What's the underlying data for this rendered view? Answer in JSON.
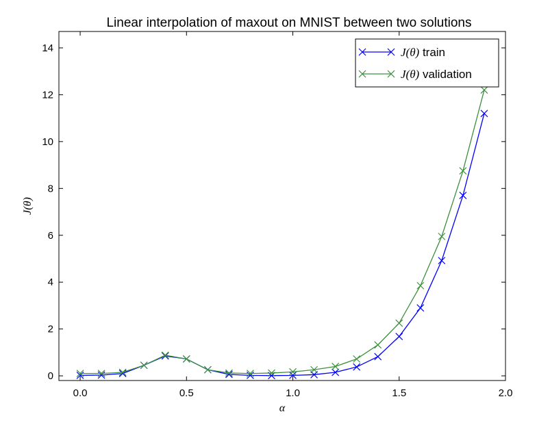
{
  "chart_data": {
    "type": "line",
    "title": "Linear interpolation of maxout on MNIST between two solutions",
    "xlabel": "α",
    "ylabel": "J(θ)",
    "xlim": [
      -0.1,
      2.0
    ],
    "ylim": [
      -0.2,
      14.7
    ],
    "xticks": [
      0.0,
      0.5,
      1.0,
      1.5,
      2.0
    ],
    "xtick_labels": [
      "0.0",
      "0.5",
      "1.0",
      "1.5",
      "2.0"
    ],
    "yticks": [
      0,
      2,
      4,
      6,
      8,
      10,
      12,
      14
    ],
    "ytick_labels": [
      "0",
      "2",
      "4",
      "6",
      "8",
      "10",
      "12",
      "14"
    ],
    "grid": false,
    "legend_position": "top-right",
    "x": [
      0.0,
      0.1,
      0.2,
      0.3,
      0.4,
      0.5,
      0.6,
      0.7,
      0.8,
      0.9,
      1.0,
      1.1,
      1.2,
      1.3,
      1.4,
      1.5,
      1.6,
      1.7,
      1.8,
      1.9
    ],
    "series": [
      {
        "name": "J(θ) train",
        "name_math": "J(θ)",
        "name_text": " train",
        "color": "#0000ff",
        "marker": "x",
        "values": [
          0.02,
          0.03,
          0.1,
          0.45,
          0.85,
          0.72,
          0.26,
          0.06,
          0.02,
          0.01,
          0.02,
          0.05,
          0.15,
          0.38,
          0.82,
          1.68,
          2.9,
          4.92,
          7.7,
          11.2
        ]
      },
      {
        "name": "J(θ) validation",
        "name_math": "J(θ)",
        "name_text": " validation",
        "color": "#3c8f3c",
        "marker": "x",
        "values": [
          0.1,
          0.1,
          0.15,
          0.45,
          0.88,
          0.72,
          0.26,
          0.12,
          0.1,
          0.12,
          0.17,
          0.26,
          0.4,
          0.72,
          1.32,
          2.25,
          3.85,
          5.95,
          8.75,
          12.2
        ]
      }
    ]
  }
}
